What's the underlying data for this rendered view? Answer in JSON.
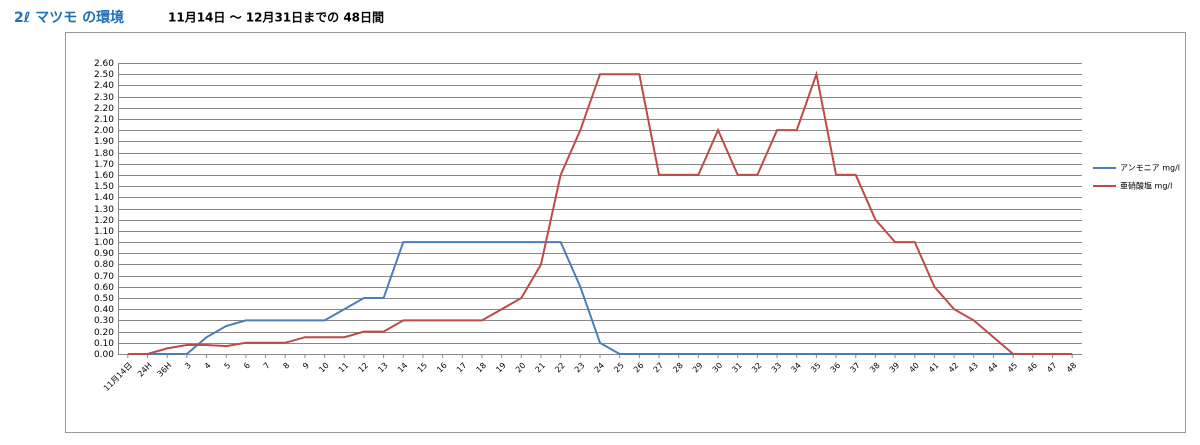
{
  "header": {
    "title": "2ℓ マツモ の環境",
    "subtitle": "11月14日 〜 12月31日までの 48日間"
  },
  "chart_data": {
    "type": "line",
    "categories": [
      "11月14日",
      "24H",
      "36H",
      "3",
      "4",
      "5",
      "6",
      "7",
      "8",
      "9",
      "10",
      "11",
      "12",
      "13",
      "14",
      "15",
      "16",
      "17",
      "18",
      "19",
      "20",
      "21",
      "22",
      "23",
      "24",
      "25",
      "26",
      "27",
      "28",
      "29",
      "30",
      "31",
      "32",
      "33",
      "34",
      "35",
      "36",
      "37",
      "38",
      "39",
      "40",
      "41",
      "42",
      "43",
      "44",
      "45",
      "46",
      "47",
      "48"
    ],
    "series": [
      {
        "name": "アンモニア mg/l",
        "color": "#4a7ebb",
        "values": [
          0,
          0,
          0,
          0,
          0.15,
          0.25,
          0.3,
          0.3,
          0.3,
          0.3,
          0.3,
          0.4,
          0.5,
          0.5,
          1.0,
          1.0,
          1.0,
          1.0,
          1.0,
          1.0,
          1.0,
          1.0,
          1.0,
          0.6,
          0.1,
          0,
          0,
          0,
          0,
          0,
          0,
          0,
          0,
          0,
          0,
          0,
          0,
          0,
          0,
          0,
          0,
          0,
          0,
          0,
          0,
          0,
          0,
          0,
          0
        ]
      },
      {
        "name": "亜硝酸塩 mg/l",
        "color": "#be4b48",
        "values": [
          0,
          0,
          0.05,
          0.08,
          0.08,
          0.07,
          0.1,
          0.1,
          0.1,
          0.15,
          0.15,
          0.15,
          0.2,
          0.2,
          0.3,
          0.3,
          0.3,
          0.3,
          0.3,
          0.4,
          0.5,
          0.8,
          1.6,
          2.0,
          2.5,
          2.5,
          2.5,
          1.6,
          1.6,
          1.6,
          2.0,
          1.6,
          1.6,
          2.0,
          2.0,
          2.5,
          1.6,
          1.6,
          1.2,
          1.0,
          1.0,
          0.6,
          0.4,
          0.3,
          0.15,
          0,
          0,
          0,
          0
        ]
      }
    ],
    "ylim": [
      0,
      2.6
    ],
    "yticks": [
      {
        "value": 0,
        "label": "0.00"
      },
      {
        "value": 0.1,
        "label": "0.10"
      },
      {
        "value": 0.2,
        "label": "0.20"
      },
      {
        "value": 0.3,
        "label": "0.30"
      },
      {
        "value": 0.4,
        "label": "0.40"
      },
      {
        "value": 0.5,
        "label": "0.50"
      },
      {
        "value": 0.6,
        "label": "0.60"
      },
      {
        "value": 0.7,
        "label": "0.70"
      },
      {
        "value": 0.8,
        "label": "0.80"
      },
      {
        "value": 0.9,
        "label": "0.90"
      },
      {
        "value": 1.0,
        "label": "1.00"
      },
      {
        "value": 1.1,
        "label": "1.10"
      },
      {
        "value": 1.2,
        "label": "1.20"
      },
      {
        "value": 1.3,
        "label": "1.30"
      },
      {
        "value": 1.4,
        "label": "1.40"
      },
      {
        "value": 1.5,
        "label": "1.50"
      },
      {
        "value": 1.6,
        "label": "1.60"
      },
      {
        "value": 1.7,
        "label": "1.70"
      },
      {
        "value": 1.8,
        "label": "1.80"
      },
      {
        "value": 1.9,
        "label": "1.90"
      },
      {
        "value": 2.0,
        "label": "2.00"
      },
      {
        "value": 2.1,
        "label": "2.10"
      },
      {
        "value": 2.2,
        "label": "2.20"
      },
      {
        "value": 2.3,
        "label": "2.30"
      },
      {
        "value": 2.4,
        "label": "2.40"
      },
      {
        "value": 2.5,
        "label": "2.50"
      },
      {
        "value": 2.6,
        "label": "2.60"
      }
    ],
    "grid": true,
    "legend": "right"
  }
}
